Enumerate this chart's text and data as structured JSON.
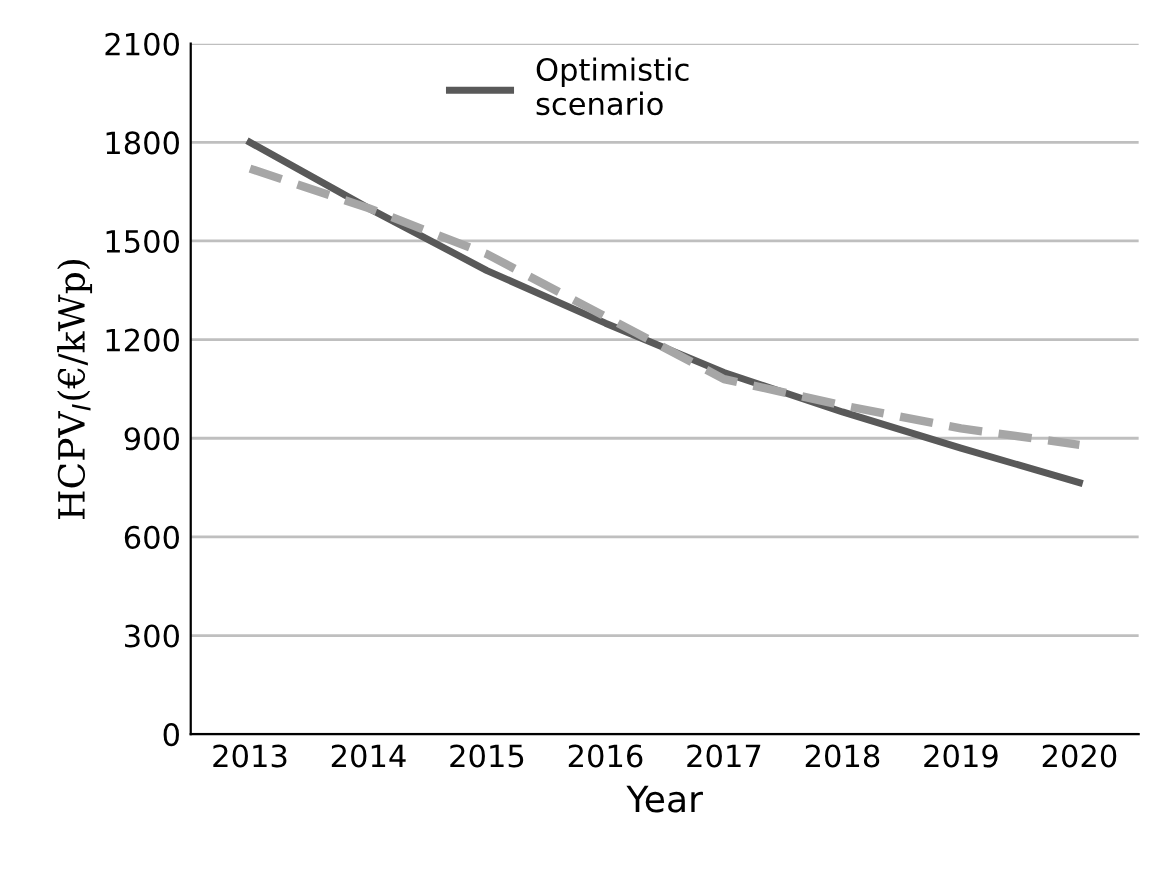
{
  "chart_data": {
    "type": "line",
    "xlabel": "Year",
    "ylabel": "HCPV$_{I}$(€/kWp)",
    "categories": [
      "2013",
      "2014",
      "2015",
      "2016",
      "2017",
      "2018",
      "2019",
      "2020"
    ],
    "series": [
      {
        "name": "Optimistic\nscenario",
        "color": "#595959",
        "line_style": "solid",
        "values": [
          1800,
          1600,
          1410,
          1250,
          1100,
          980,
          870,
          765
        ]
      },
      {
        "color": "#a6a6a6",
        "line_style": "dashed",
        "values": [
          1720,
          1600,
          1460,
          1270,
          1080,
          1000,
          930,
          880
        ]
      }
    ],
    "ylim": [
      0,
      2100
    ],
    "yticks": [
      0,
      300,
      600,
      900,
      1200,
      1500,
      1800,
      2100
    ],
    "grid": "y",
    "legend": "top",
    "marker": "none"
  }
}
